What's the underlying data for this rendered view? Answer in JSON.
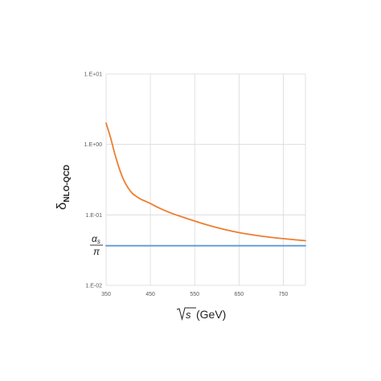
{
  "chart_data": {
    "type": "line",
    "xlabel": "(GeV)",
    "xlabel_root_symbol": "√s",
    "ylabel_main": "δ",
    "ylabel_sub": "NLO-QCD",
    "annotation_numerator": "α",
    "annotation_numerator_sub": "s",
    "annotation_denominator": "π",
    "yscale": "log",
    "xlim": [
      350,
      800
    ],
    "ylim": [
      0.01,
      10
    ],
    "grid": true,
    "x_ticks": [
      350,
      450,
      550,
      650,
      750
    ],
    "x_tick_labels": [
      "350",
      "450",
      "550",
      "650",
      "750"
    ],
    "y_ticks": [
      0.01,
      0.1,
      1,
      10
    ],
    "y_tick_labels": [
      "1.E-02",
      "1.E-01",
      "1.E+00",
      "1.E+01"
    ],
    "series": [
      {
        "color": "#ED7D31",
        "x": [
          350,
          360,
          370,
          380,
          390,
          400,
          410,
          420,
          430,
          440,
          450,
          470,
          500,
          530,
          560,
          600,
          650,
          700,
          750,
          800
        ],
        "y": [
          2.0,
          1.25,
          0.72,
          0.45,
          0.31,
          0.24,
          0.2,
          0.18,
          0.165,
          0.155,
          0.145,
          0.125,
          0.104,
          0.09,
          0.078,
          0.066,
          0.056,
          0.05,
          0.046,
          0.043
        ]
      },
      {
        "color": "#5B9BD5",
        "x": [
          350,
          800
        ],
        "y": [
          0.0365,
          0.0365
        ]
      }
    ]
  }
}
